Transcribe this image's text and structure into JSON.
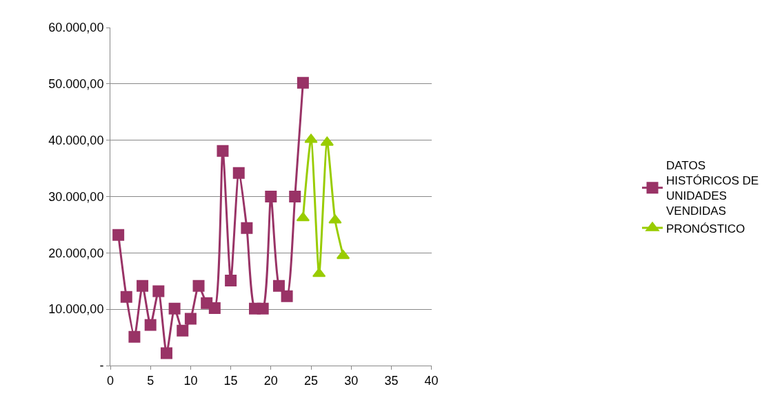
{
  "chart_data": {
    "type": "line",
    "x": [
      1,
      2,
      3,
      4,
      5,
      6,
      7,
      8,
      9,
      10,
      11,
      12,
      13,
      14,
      15,
      16,
      17,
      18,
      19,
      20,
      21,
      22,
      23,
      24
    ],
    "series": [
      {
        "name": "DATOS HISTÓRICOS DE UNIDADES VENDIDAS",
        "color": "#993366",
        "marker": "square",
        "values": [
          23200,
          12200,
          5100,
          14150,
          7200,
          13200,
          2200,
          10100,
          6200,
          8300,
          14150,
          11100,
          10200,
          38100,
          15100,
          34200,
          24400,
          10100,
          10100,
          30000,
          14150,
          12300,
          30000,
          50200
        ]
      },
      {
        "name": "PRONÓSTICO",
        "color": "#99cc00",
        "marker": "triangle",
        "x": [
          24,
          25,
          26,
          27,
          28,
          29
        ],
        "values": [
          26200,
          40100,
          16300,
          39600,
          25800,
          19500
        ]
      }
    ],
    "xlim": [
      0,
      40
    ],
    "xticks": [
      0,
      5,
      10,
      15,
      20,
      25,
      30,
      35,
      40
    ],
    "ylim": [
      0,
      60000
    ],
    "yticks": [
      {
        "value": 0,
        "label": "-"
      },
      {
        "value": 10000,
        "label": "10.000,00"
      },
      {
        "value": 20000,
        "label": "20.000,00"
      },
      {
        "value": 30000,
        "label": "30.000,00"
      },
      {
        "value": 40000,
        "label": "40.000,00"
      },
      {
        "value": 50000,
        "label": "50.000,00"
      },
      {
        "value": 60000,
        "label": "60.000,00"
      }
    ],
    "grid": "y",
    "legend": "right",
    "line_style": "solid"
  }
}
